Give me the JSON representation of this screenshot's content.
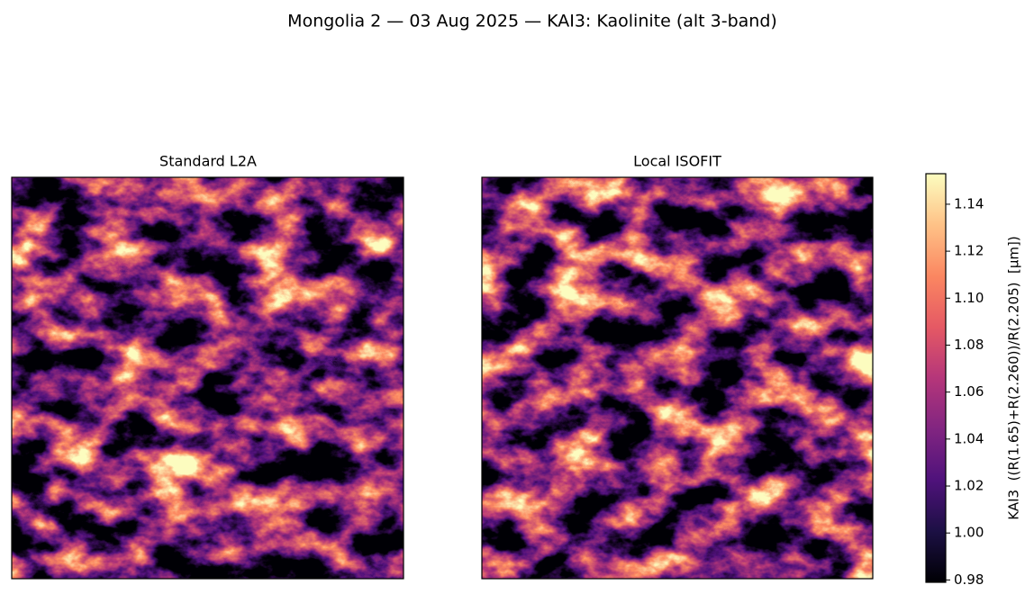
{
  "chart_data": {
    "type": "image",
    "title": "Mongolia 2 — 03 Aug 2025 — KAI3: Kaolinite (alt 3-band)",
    "panels": [
      {
        "title": "Standard L2A"
      },
      {
        "title": "Local ISOFIT"
      }
    ],
    "colormap": "magma",
    "colorbar_label": "KAI3  ((R(1.65)+R(2.260))/R(2.205)  [µm])",
    "clim": [
      0.979,
      1.153
    ],
    "cticks": [
      0.98,
      {
        "value": 1,
        "label": "1.00"
      },
      1.02,
      1.04,
      1.06,
      1.08,
      {
        "value": 1.1,
        "label": "1.10"
      },
      1.12,
      1.14
    ]
  }
}
